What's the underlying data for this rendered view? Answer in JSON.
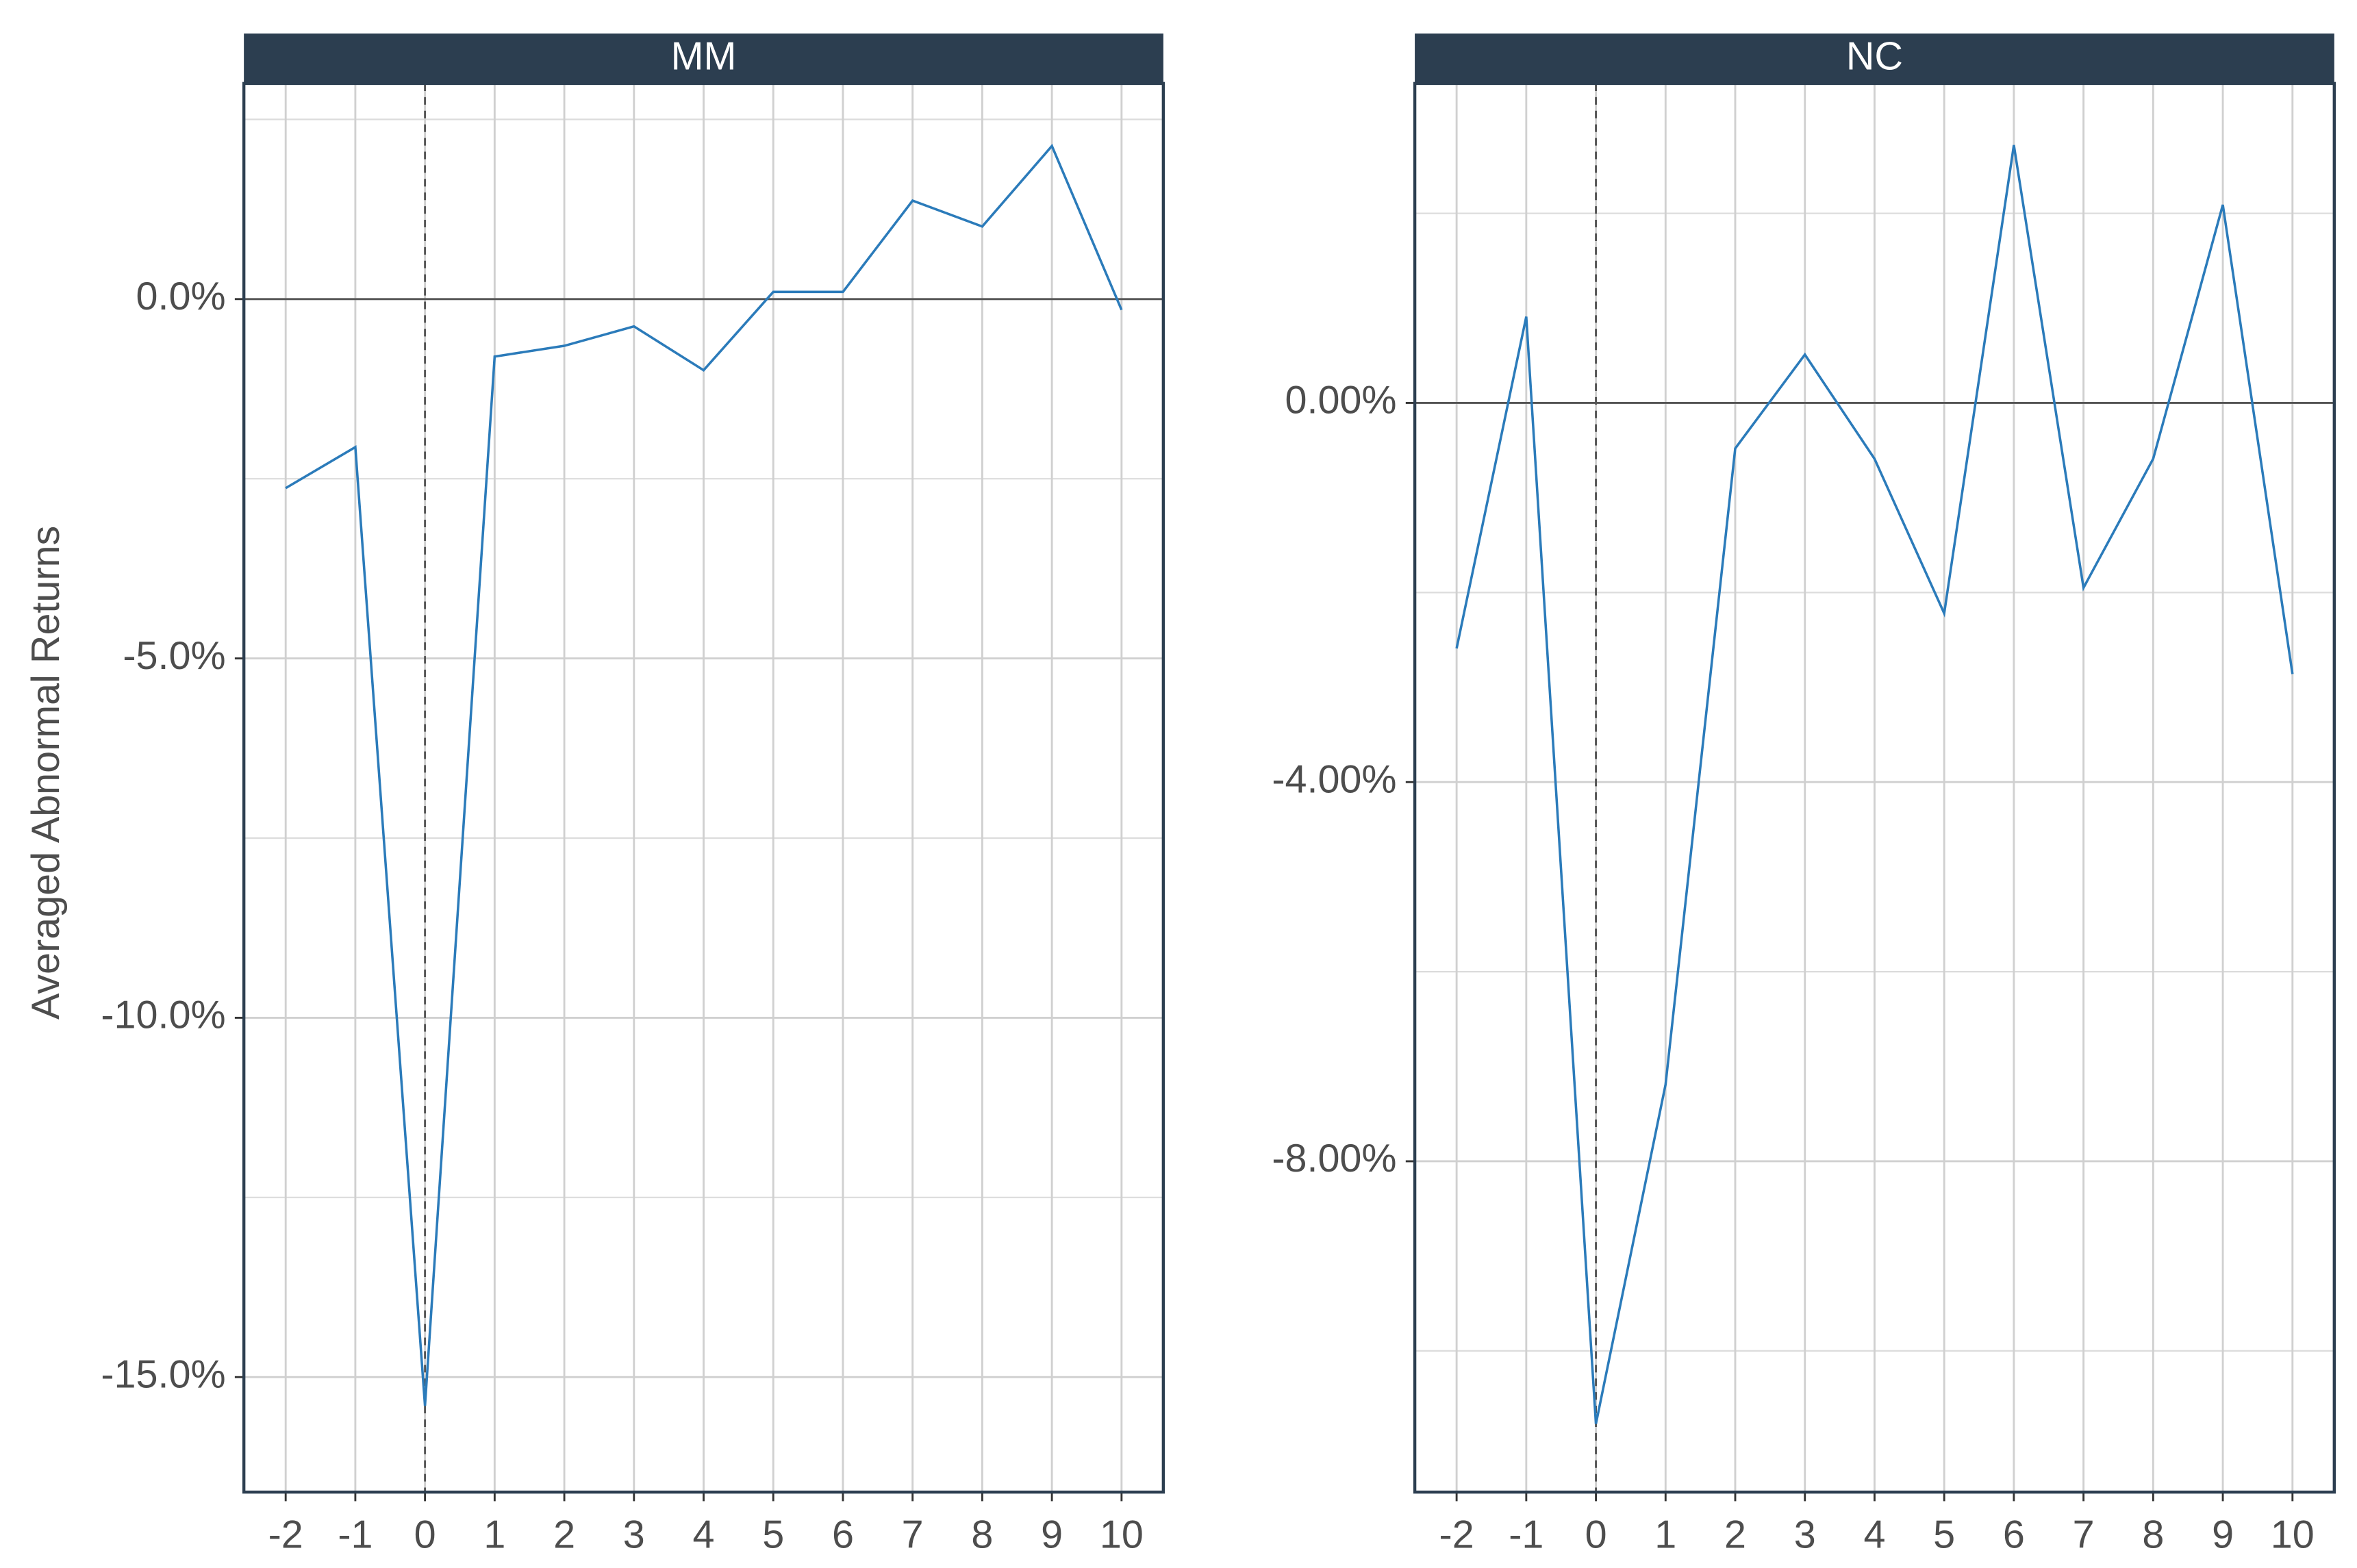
{
  "chart_data": [
    {
      "type": "line",
      "title": "MM",
      "ylabel": "Averaged Abnormal Returns",
      "x": [
        -2,
        -1,
        0,
        1,
        2,
        3,
        4,
        5,
        6,
        7,
        8,
        9,
        10
      ],
      "series": [
        {
          "color": "#2b7bba",
          "values": [
            -2.63,
            -2.06,
            -15.4,
            -0.8,
            -0.65,
            -0.38,
            -0.99,
            0.1,
            0.1,
            1.37,
            1.01,
            2.13,
            -0.15
          ]
        }
      ],
      "xlim": [
        -2.6,
        10.6
      ],
      "xticks": [
        -2,
        -1,
        0,
        1,
        2,
        3,
        4,
        5,
        6,
        7,
        8,
        9,
        10
      ],
      "ylim": [
        -16.6,
        3.0
      ],
      "yticks": [
        {
          "value": -15,
          "label": "-15.0%"
        },
        {
          "value": -10,
          "label": "-10.0%"
        },
        {
          "value": -5,
          "label": "-5.0%"
        },
        {
          "value": 0,
          "label": "0.0%"
        }
      ],
      "minor_yticks": [
        -12.5,
        -7.5,
        -2.5,
        2.5
      ],
      "grid": true,
      "hline": 0,
      "vline": 0
    },
    {
      "type": "line",
      "title": "NC",
      "x": [
        -2,
        -1,
        0,
        1,
        2,
        3,
        4,
        5,
        6,
        7,
        8,
        9,
        10
      ],
      "series": [
        {
          "color": "#2b7bba",
          "values": [
            -2.59,
            0.91,
            -10.77,
            -7.19,
            -0.48,
            0.51,
            -0.59,
            -2.22,
            2.72,
            -1.95,
            -0.59,
            2.09,
            -2.86
          ]
        }
      ],
      "xlim": [
        -2.6,
        10.6
      ],
      "xticks": [
        -2,
        -1,
        0,
        1,
        2,
        3,
        4,
        5,
        6,
        7,
        8,
        9,
        10
      ],
      "ylim": [
        -11.49,
        3.37
      ],
      "yticks": [
        {
          "value": -8,
          "label": "-8.00%"
        },
        {
          "value": -4,
          "label": "-4.00%"
        },
        {
          "value": 0,
          "label": "0.00%"
        }
      ],
      "minor_yticks": [
        -10,
        -6,
        -2,
        2
      ],
      "grid": true,
      "hline": 0,
      "vline": 0
    }
  ]
}
